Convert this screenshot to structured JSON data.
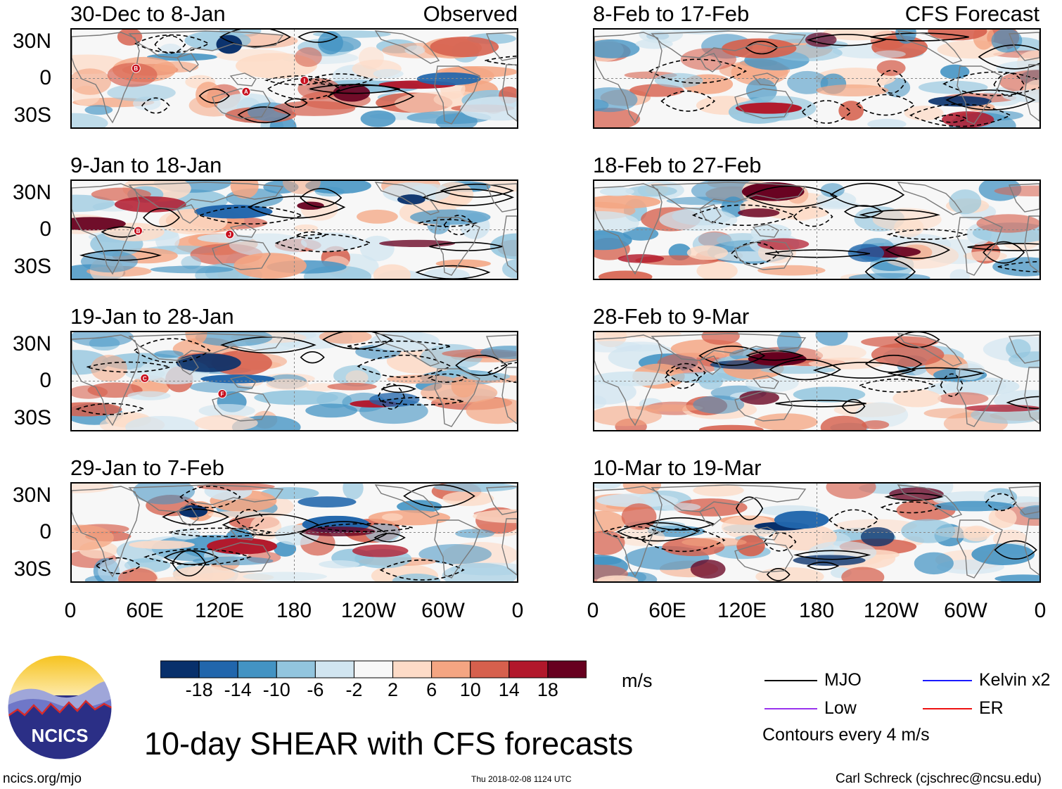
{
  "panels_left": [
    {
      "title": "30-Dec to 8-Jan",
      "tag": "Observed",
      "storms": [
        {
          "label": "B"
        },
        {
          "label": "A"
        },
        {
          "label": "I"
        }
      ]
    },
    {
      "title": "9-Jan to 18-Jan",
      "tag": "",
      "storms": [
        {
          "label": "B"
        },
        {
          "label": "J"
        }
      ]
    },
    {
      "title": "19-Jan to 28-Jan",
      "tag": "",
      "storms": [
        {
          "label": "C"
        },
        {
          "label": "F"
        }
      ]
    },
    {
      "title": "29-Jan to 7-Feb",
      "tag": "",
      "storms": []
    }
  ],
  "panels_right": [
    {
      "title": "8-Feb to 17-Feb",
      "tag": "CFS Forecast"
    },
    {
      "title": "18-Feb to 27-Feb",
      "tag": ""
    },
    {
      "title": "28-Feb to 9-Mar",
      "tag": ""
    },
    {
      "title": "10-Mar to 19-Mar",
      "tag": ""
    }
  ],
  "y_labels": [
    "30N",
    "0",
    "30S"
  ],
  "x_labels": [
    "0",
    "60E",
    "120E",
    "180",
    "120W",
    "60W",
    "0"
  ],
  "colorbar": {
    "labels": [
      "-18",
      "-14",
      "-10",
      "-6",
      "-2",
      "2",
      "6",
      "10",
      "14",
      "18"
    ],
    "colors": [
      "#08306b",
      "#2166ac",
      "#4393c3",
      "#92c5de",
      "#d1e5f0",
      "#f7f7f7",
      "#fddbc7",
      "#f4a582",
      "#d6604d",
      "#b2182b",
      "#67001f"
    ],
    "units": "m/s"
  },
  "legend": {
    "items": [
      {
        "label": "MJO",
        "color": "#000000"
      },
      {
        "label": "Kelvin x2",
        "color": "#1a1aff"
      },
      {
        "label": "Low",
        "color": "#9933ee"
      },
      {
        "label": "ER",
        "color": "#ee1111"
      }
    ],
    "note": "Contours every 4 m/s"
  },
  "logo_text": "NCICS",
  "main_title": "10-day SHEAR with CFS forecasts",
  "footer": {
    "url": "ncics.org/mjo",
    "timestamp": "Thu 2018-02-08 1124 UTC",
    "credit": "Carl Schreck (cjschrec@ncsu.edu)"
  }
}
